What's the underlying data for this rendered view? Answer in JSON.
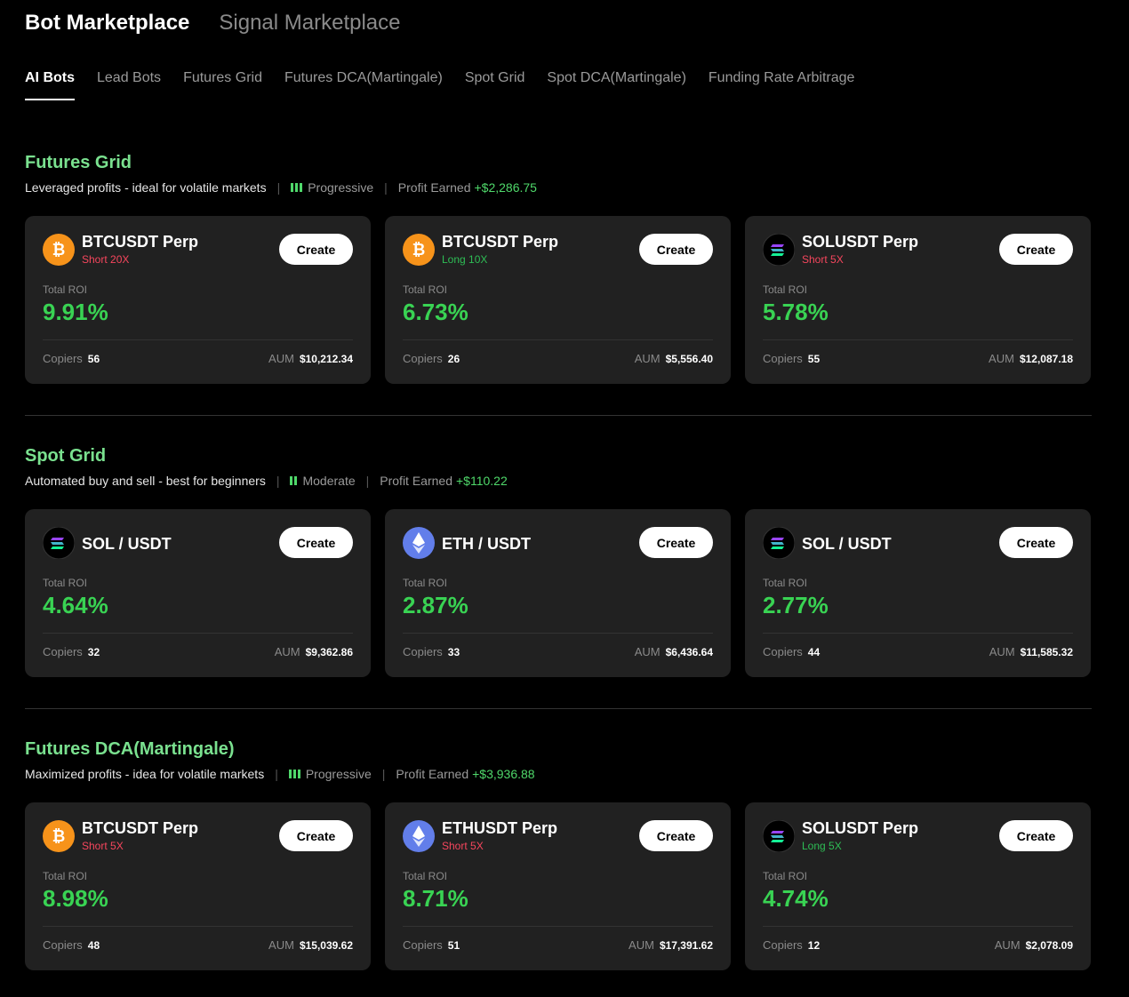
{
  "header": {
    "tabs": [
      "Bot Marketplace",
      "Signal Marketplace"
    ],
    "subtabs": [
      "AI Bots",
      "Lead Bots",
      "Futures Grid",
      "Futures DCA(Martingale)",
      "Spot Grid",
      "Spot DCA(Martingale)",
      "Funding Rate Arbitrage"
    ]
  },
  "sections": [
    {
      "title": "Futures Grid",
      "description": "Leveraged profits - ideal for volatile markets",
      "risk": "Progressive",
      "profit_label": "Profit Earned",
      "profit": "+$2,286.75",
      "cards": [
        {
          "pair": "BTCUSDT Perp",
          "side": "Short 20X",
          "side_color": "#f6465d",
          "button": "Create",
          "roi_label": "Total ROI",
          "roi": "9.91%",
          "copiers_label": "Copiers",
          "copiers": "56",
          "aum_label": "AUM",
          "aum": "$10,212.34"
        },
        {
          "pair": "BTCUSDT Perp",
          "side": "Long 10X",
          "side_color": "#2ebd55",
          "button": "Create",
          "roi_label": "Total ROI",
          "roi": "6.73%",
          "copiers_label": "Copiers",
          "copiers": "26",
          "aum_label": "AUM",
          "aum": "$5,556.40"
        },
        {
          "pair": "SOLUSDT Perp",
          "side": "Short 5X",
          "side_color": "#f6465d",
          "button": "Create",
          "roi_label": "Total ROI",
          "roi": "5.78%",
          "copiers_label": "Copiers",
          "copiers": "55",
          "aum_label": "AUM",
          "aum": "$12,087.18"
        }
      ]
    },
    {
      "title": "Spot Grid",
      "description": "Automated buy and sell - best for beginners",
      "risk": "Moderate",
      "profit_label": "Profit Earned",
      "profit": "+$110.22",
      "cards": [
        {
          "pair": "SOL / USDT",
          "button": "Create",
          "roi_label": "Total ROI",
          "roi": "4.64%",
          "copiers_label": "Copiers",
          "copiers": "32",
          "aum_label": "AUM",
          "aum": "$9,362.86"
        },
        {
          "pair": "ETH / USDT",
          "button": "Create",
          "roi_label": "Total ROI",
          "roi": "2.87%",
          "copiers_label": "Copiers",
          "copiers": "33",
          "aum_label": "AUM",
          "aum": "$6,436.64"
        },
        {
          "pair": "SOL / USDT",
          "button": "Create",
          "roi_label": "Total ROI",
          "roi": "2.77%",
          "copiers_label": "Copiers",
          "copiers": "44",
          "aum_label": "AUM",
          "aum": "$11,585.32"
        }
      ]
    },
    {
      "title": "Futures DCA(Martingale)",
      "description": "Maximized profits - idea for volatile markets",
      "risk": "Progressive",
      "profit_label": "Profit Earned",
      "profit": "+$3,936.88",
      "cards": [
        {
          "pair": "BTCUSDT Perp",
          "side": "Short 5X",
          "side_color": "#f6465d",
          "button": "Create",
          "roi_label": "Total ROI",
          "roi": "8.98%",
          "copiers_label": "Copiers",
          "copiers": "48",
          "aum_label": "AUM",
          "aum": "$15,039.62"
        },
        {
          "pair": "ETHUSDT Perp",
          "side": "Short 5X",
          "side_color": "#f6465d",
          "button": "Create",
          "roi_label": "Total ROI",
          "roi": "8.71%",
          "copiers_label": "Copiers",
          "copiers": "51",
          "aum_label": "AUM",
          "aum": "$17,391.62"
        },
        {
          "pair": "SOLUSDT Perp",
          "side": "Long 5X",
          "side_color": "#2ebd55",
          "button": "Create",
          "roi_label": "Total ROI",
          "roi": "4.74%",
          "copiers_label": "Copiers",
          "copiers": "12",
          "aum_label": "AUM",
          "aum": "$2,078.09"
        }
      ]
    }
  ]
}
